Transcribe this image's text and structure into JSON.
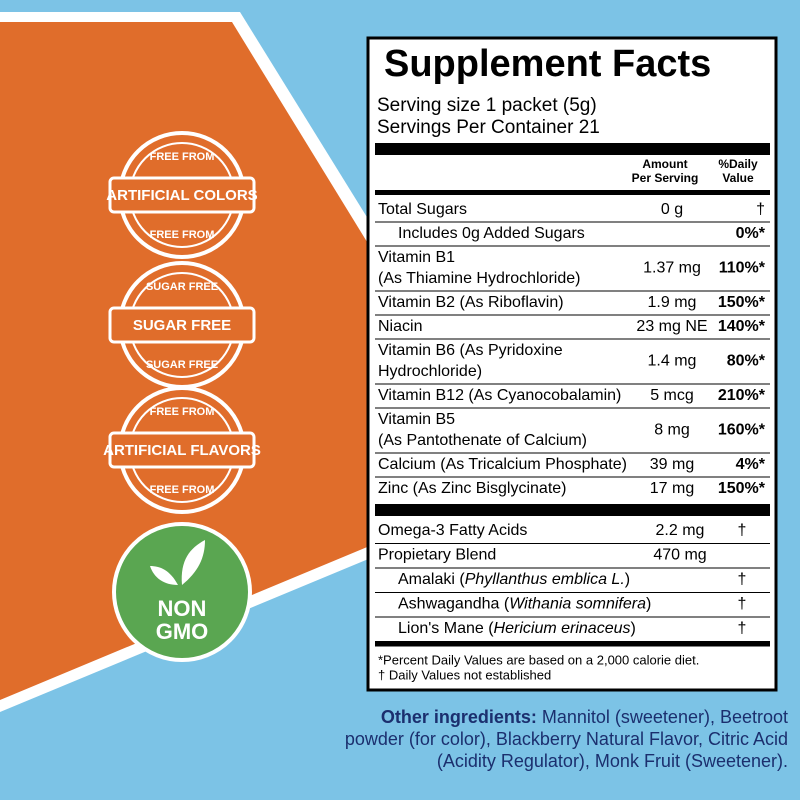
{
  "badges": [
    {
      "top": "FREE FROM",
      "middle": "ARTIFICIAL COLORS",
      "bottom": "FREE FROM"
    },
    {
      "top": "SUGAR FREE",
      "middle": "SUGAR FREE",
      "bottom": "SUGAR FREE"
    },
    {
      "top": "FREE FROM",
      "middle": "ARTIFICIAL FLAVORS",
      "bottom": "FREE FROM"
    }
  ],
  "gmo_badge": {
    "line1": "NON",
    "line2": "GMO"
  },
  "label": {
    "title": "Supplement Facts",
    "serving_size": "Serving size 1 packet (5g)",
    "servings_per_container": "Servings Per Container 21",
    "amount_header": [
      "Amount",
      "Per Serving"
    ],
    "dv_header": [
      "%Daily",
      "Value"
    ],
    "rows": [
      {
        "name": [
          "Total Sugars"
        ],
        "amount": "0 g",
        "dv": "†"
      },
      {
        "name": [
          "Includes 0g Added Sugars"
        ],
        "dv": "0%*"
      },
      {
        "name": [
          "Vitamin B1",
          "(As Thiamine Hydrochloride)"
        ],
        "amount": "1.37 mg",
        "dv": "110%*"
      },
      {
        "name": [
          "Vitamin B2 (As Riboflavin)"
        ],
        "amount": "1.9 mg",
        "dv": "150%*"
      },
      {
        "name": [
          "Niacin"
        ],
        "amount": "23 mg NE",
        "dv": "140%*"
      },
      {
        "name": [
          "Vitamin B6 (As Pyridoxine",
          "Hydrochloride)"
        ],
        "amount": "1.4 mg",
        "dv": "80%*"
      },
      {
        "name": [
          "Vitamin B12 (As Cyanocobalamin)"
        ],
        "amount": "5 mcg",
        "dv": "210%*"
      },
      {
        "name": [
          "Vitamin B5",
          "(As Pantothenate of Calcium)"
        ],
        "amount": "8 mg",
        "dv": "160%*"
      },
      {
        "name": [
          "Calcium (As Tricalcium Phosphate)"
        ],
        "amount": "39 mg",
        "dv": "4%*"
      },
      {
        "name": [
          "Zinc (As Zinc Bisglycinate)"
        ],
        "amount": "17 mg",
        "dv": "150%*"
      }
    ],
    "blend_rows": [
      {
        "name": "Omega-3 Fatty Acids",
        "amount": "2.2 mg",
        "dv": "†"
      },
      {
        "name": "Propietary Blend",
        "amount": "470 mg"
      },
      {
        "name": "Amalaki (",
        "latin": "Phyllanthus emblica L.",
        "close": ")",
        "dv": "†"
      },
      {
        "name": "Ashwagandha (",
        "latin": "Withania somnifera",
        "close": ")",
        "dv": "†"
      },
      {
        "name": "Lion's Mane (",
        "latin": "Hericium erinaceus",
        "close": ")",
        "dv": "†"
      }
    ],
    "footnotes": [
      "*Percent Daily Values are based on a 2,000 calorie diet.",
      "† Daily Values not established"
    ]
  },
  "other_ingredients": {
    "heading": "Other ingredients:",
    "text": "Mannitol (sweetener), Beetroot powder (for color), Blackberry Natural Flavor, Citric Acid (Acidity Regulator), Monk Fruit (Sweetener)."
  }
}
